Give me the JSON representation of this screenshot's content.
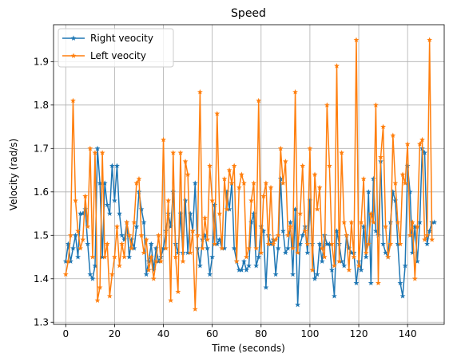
{
  "chart_data": {
    "type": "line",
    "title": "Speed",
    "xlabel": "Time (seconds)",
    "ylabel": "Velocity (rad/s)",
    "xlim": [
      -5,
      155
    ],
    "ylim": [
      1.295,
      1.985
    ],
    "xticks": [
      0,
      20,
      40,
      60,
      80,
      100,
      120,
      140
    ],
    "yticks": [
      1.3,
      1.4,
      1.5,
      1.6,
      1.7,
      1.8,
      1.9
    ],
    "grid": true,
    "legend_position": "top-left",
    "marker": "star",
    "x_step": 1,
    "series": [
      {
        "name": "Right veocity",
        "color": "#1f77b4",
        "values": [
          1.44,
          1.48,
          1.44,
          1.47,
          1.5,
          1.45,
          1.55,
          1.55,
          1.56,
          1.48,
          1.41,
          1.4,
          1.43,
          1.7,
          1.62,
          1.45,
          1.62,
          1.57,
          1.55,
          1.66,
          1.58,
          1.66,
          1.55,
          1.5,
          1.49,
          1.53,
          1.45,
          1.49,
          1.47,
          1.52,
          1.6,
          1.56,
          1.53,
          1.41,
          1.44,
          1.48,
          1.42,
          1.47,
          1.44,
          1.45,
          1.47,
          1.51,
          1.55,
          1.52,
          1.6,
          1.48,
          1.46,
          1.55,
          1.46,
          1.58,
          1.46,
          1.55,
          1.51,
          1.62,
          1.47,
          1.43,
          1.49,
          1.5,
          1.47,
          1.41,
          1.45,
          1.57,
          1.48,
          1.49,
          1.47,
          1.47,
          1.6,
          1.56,
          1.62,
          1.47,
          1.44,
          1.42,
          1.42,
          1.44,
          1.42,
          1.43,
          1.53,
          1.55,
          1.43,
          1.45,
          1.52,
          1.51,
          1.38,
          1.5,
          1.48,
          1.49,
          1.41,
          1.47,
          1.63,
          1.51,
          1.46,
          1.47,
          1.53,
          1.41,
          1.56,
          1.34,
          1.48,
          1.5,
          1.52,
          1.46,
          1.58,
          1.48,
          1.4,
          1.41,
          1.48,
          1.44,
          1.5,
          1.48,
          1.48,
          1.42,
          1.36,
          1.51,
          1.48,
          1.44,
          1.43,
          1.5,
          1.47,
          1.46,
          1.46,
          1.39,
          1.44,
          1.42,
          1.52,
          1.45,
          1.6,
          1.39,
          1.63,
          1.51,
          1.5,
          1.67,
          1.48,
          1.46,
          1.45,
          1.53,
          1.6,
          1.58,
          1.48,
          1.39,
          1.36,
          1.43,
          1.66,
          1.6,
          1.46,
          1.52,
          1.44,
          1.53,
          1.7,
          1.69,
          1.48,
          1.51,
          1.53,
          1.53
        ]
      },
      {
        "name": "Left veocity",
        "color": "#ff7f0e",
        "values": [
          1.41,
          1.44,
          1.5,
          1.81,
          1.58,
          1.51,
          1.47,
          1.49,
          1.59,
          1.52,
          1.7,
          1.45,
          1.69,
          1.35,
          1.38,
          1.69,
          1.45,
          1.48,
          1.36,
          1.41,
          1.45,
          1.52,
          1.43,
          1.48,
          1.45,
          1.53,
          1.5,
          1.47,
          1.53,
          1.62,
          1.63,
          1.5,
          1.46,
          1.49,
          1.42,
          1.45,
          1.4,
          1.44,
          1.5,
          1.44,
          1.72,
          1.47,
          1.58,
          1.35,
          1.69,
          1.45,
          1.37,
          1.69,
          1.44,
          1.67,
          1.64,
          1.46,
          1.51,
          1.33,
          1.5,
          1.83,
          1.47,
          1.54,
          1.49,
          1.66,
          1.58,
          1.48,
          1.78,
          1.55,
          1.47,
          1.63,
          1.56,
          1.65,
          1.62,
          1.66,
          1.44,
          1.61,
          1.64,
          1.62,
          1.45,
          1.47,
          1.58,
          1.62,
          1.47,
          1.81,
          1.46,
          1.59,
          1.62,
          1.48,
          1.61,
          1.48,
          1.49,
          1.5,
          1.7,
          1.62,
          1.67,
          1.5,
          1.52,
          1.47,
          1.83,
          1.46,
          1.55,
          1.66,
          1.51,
          1.48,
          1.7,
          1.42,
          1.64,
          1.56,
          1.61,
          1.47,
          1.45,
          1.8,
          1.66,
          1.48,
          1.43,
          1.89,
          1.44,
          1.69,
          1.53,
          1.5,
          1.42,
          1.53,
          1.45,
          1.95,
          1.43,
          1.53,
          1.63,
          1.46,
          1.48,
          1.55,
          1.53,
          1.8,
          1.39,
          1.68,
          1.75,
          1.52,
          1.45,
          1.48,
          1.73,
          1.62,
          1.53,
          1.48,
          1.64,
          1.62,
          1.71,
          1.5,
          1.53,
          1.4,
          1.52,
          1.71,
          1.72,
          1.49,
          1.5,
          1.95,
          1.49
        ]
      }
    ]
  }
}
